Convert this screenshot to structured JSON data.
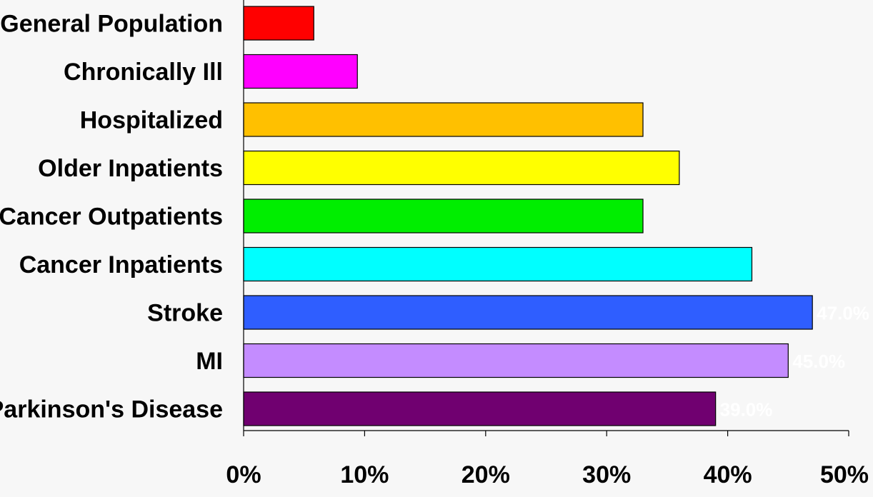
{
  "chart_data": {
    "type": "bar",
    "orientation": "horizontal",
    "title": "",
    "xlabel": "",
    "ylabel": "",
    "xlim": [
      0,
      50
    ],
    "x_ticks": [
      "0%",
      "10%",
      "20%",
      "30%",
      "40%",
      "50%"
    ],
    "grid": false,
    "legend": "none",
    "categories": [
      "General Population",
      "Chronically Ill",
      "Hospitalized",
      "Older Inpatients",
      "Cancer Outpatients",
      "Cancer Inpatients",
      "Stroke",
      "MI",
      "Parkinson's Disease"
    ],
    "values": [
      5.8,
      9.4,
      33,
      36,
      33,
      42,
      47,
      45,
      39
    ],
    "data_labels": [
      "",
      "",
      "",
      "",
      "",
      "",
      "47.0%",
      "45.0%",
      "39.0%"
    ],
    "colors": [
      "#ff0000",
      "#ff00ff",
      "#ffc000",
      "#ffff00",
      "#00ee00",
      "#00ffff",
      "#2f5eff",
      "#c48cff",
      "#700070"
    ]
  }
}
